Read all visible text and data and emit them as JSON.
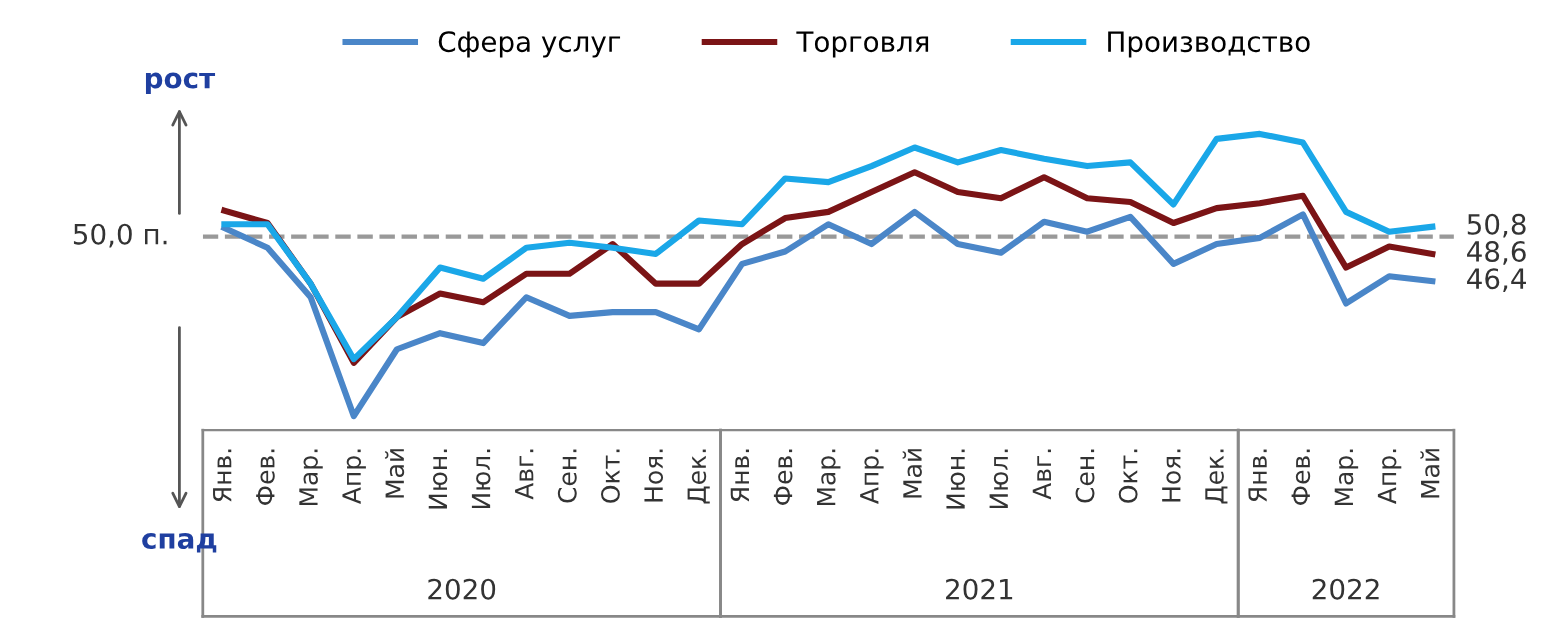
{
  "chart_data": {
    "type": "line",
    "categories": [
      "Янв.",
      "Фев.",
      "Мар.",
      "Апр.",
      "Май",
      "Июн.",
      "Июл.",
      "Авг.",
      "Сен.",
      "Окт.",
      "Ноя.",
      "Дек.",
      "Янв.",
      "Фев.",
      "Мар.",
      "Апр.",
      "Май",
      "Июн.",
      "Июл.",
      "Авг.",
      "Сен.",
      "Окт.",
      "Ноя.",
      "Дек.",
      "Янв.",
      "Фев.",
      "Мар.",
      "Апр.",
      "Май"
    ],
    "series": [
      {
        "name": "Сфера услуг",
        "color": "#4a86c8",
        "values": [
          50.7,
          49.1,
          45.1,
          35.5,
          40.9,
          42.2,
          41.4,
          45.1,
          43.6,
          43.9,
          43.9,
          42.5,
          47.8,
          48.8,
          51.0,
          49.4,
          52.0,
          49.4,
          48.7,
          51.2,
          50.4,
          51.6,
          47.8,
          49.4,
          49.9,
          51.8,
          44.6,
          46.8,
          46.4
        ],
        "value_labels": [
          null,
          null,
          null,
          null,
          null,
          null,
          null,
          null,
          null,
          null,
          null,
          null,
          null,
          null,
          null,
          null,
          null,
          null,
          null,
          null,
          null,
          null,
          null,
          null,
          null,
          null,
          null,
          null,
          "46,4"
        ]
      },
      {
        "name": "Торговля",
        "color": "#7b1416",
        "values": [
          52.1,
          51.1,
          46.2,
          39.8,
          43.5,
          45.4,
          44.7,
          47.0,
          47.0,
          49.4,
          46.2,
          46.2,
          49.4,
          51.5,
          52.0,
          53.6,
          55.2,
          53.6,
          53.1,
          54.8,
          53.1,
          52.8,
          51.1,
          52.3,
          52.7,
          53.3,
          47.5,
          49.2,
          48.6
        ],
        "value_labels": [
          null,
          null,
          null,
          null,
          null,
          null,
          null,
          null,
          null,
          null,
          null,
          null,
          null,
          null,
          null,
          null,
          null,
          null,
          null,
          null,
          null,
          null,
          null,
          null,
          null,
          null,
          null,
          null,
          "48,6"
        ]
      },
      {
        "name": "Производство",
        "color": "#1aa7e8",
        "values": [
          51.0,
          51.0,
          46.2,
          40.1,
          43.5,
          47.5,
          46.6,
          49.1,
          49.5,
          49.1,
          48.6,
          51.3,
          51.0,
          54.7,
          54.4,
          55.7,
          57.2,
          56.0,
          57.0,
          56.3,
          55.7,
          56.0,
          52.6,
          57.9,
          58.3,
          57.6,
          52.0,
          50.4,
          50.8
        ],
        "value_labels": [
          null,
          null,
          null,
          null,
          null,
          null,
          null,
          null,
          null,
          null,
          null,
          null,
          null,
          null,
          null,
          null,
          null,
          null,
          null,
          null,
          null,
          null,
          null,
          null,
          null,
          null,
          null,
          null,
          "50,8"
        ]
      }
    ],
    "tick_labels": "x",
    "ref_lines": [
      {
        "axis": "y",
        "value": 50,
        "label": "50,0 п.",
        "color": "#999999",
        "line_style": "dashed"
      }
    ],
    "annotations": [
      "2020",
      "2021",
      "2022",
      "рост",
      "спад"
    ],
    "legend": "top",
    "grid": false,
    "marker": "none",
    "line_style": "solid"
  }
}
